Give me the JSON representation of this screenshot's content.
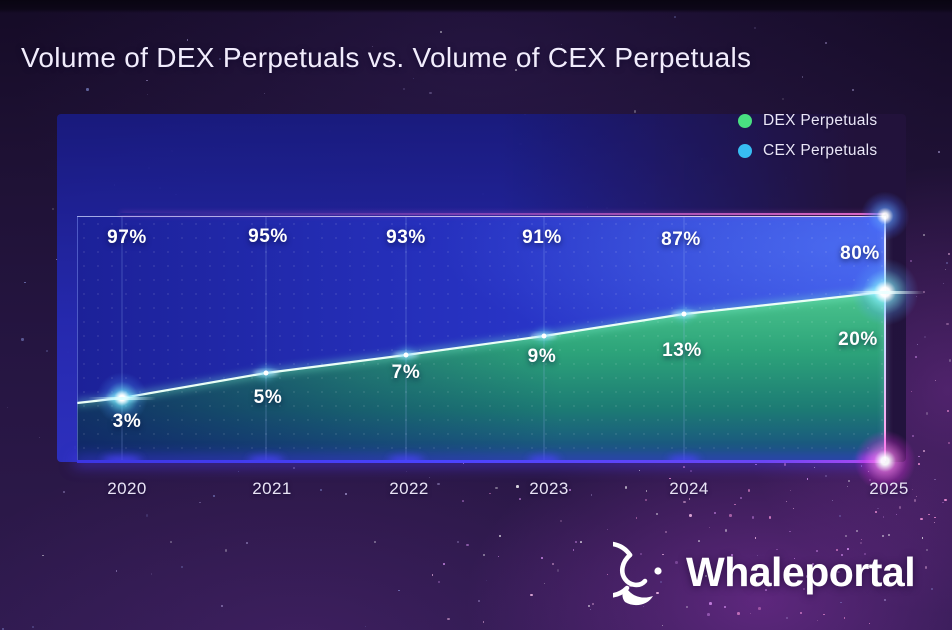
{
  "title": "Volume of DEX Perpetuals vs. Volume of CEX Perpetuals",
  "legend": {
    "items": [
      {
        "label": "DEX Perpetuals",
        "color": "#49e081"
      },
      {
        "label": "CEX Perpetuals",
        "color": "#37bdf2"
      }
    ]
  },
  "chart_data": {
    "type": "area",
    "stacked": true,
    "unit": "%",
    "categories": [
      "2020",
      "2021",
      "2022",
      "2023",
      "2024",
      "2025"
    ],
    "series": [
      {
        "name": "DEX Perpetuals",
        "color": "#49e081",
        "values": [
          3,
          5,
          7,
          9,
          13,
          20
        ]
      },
      {
        "name": "CEX Perpetuals",
        "color": "#37bdf2",
        "values": [
          97,
          95,
          93,
          91,
          87,
          80
        ]
      }
    ],
    "dex_labels": [
      "3%",
      "5%",
      "7%",
      "9%",
      "13%",
      "20%"
    ],
    "cex_labels": [
      "97%",
      "95%",
      "93%",
      "91%",
      "87%",
      "80%"
    ],
    "ylim": [
      0,
      100
    ],
    "grid": "dotted",
    "legend_position": "top-right"
  },
  "watermark": {
    "brand": "Whaleportal"
  },
  "colors": {
    "dex_dot": "#49e081",
    "cex_dot": "#37bdf2",
    "area_blue": "#2a33c4",
    "area_green": "#2d9c78",
    "background": "#251541",
    "flare_magenta": "#f04ae0",
    "title_text": "#f1ecfc"
  }
}
